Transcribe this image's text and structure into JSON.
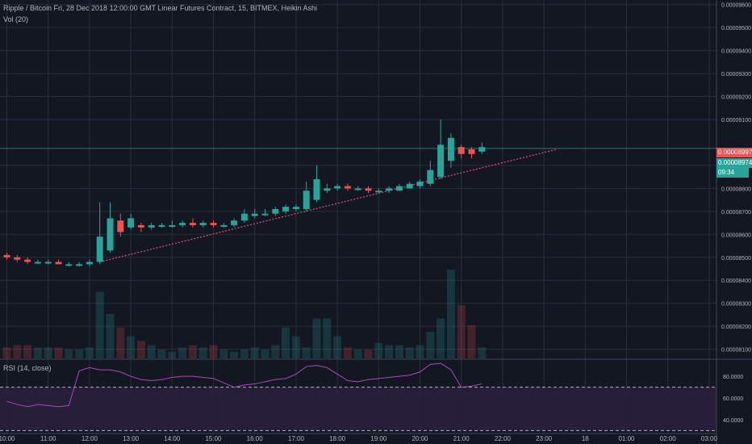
{
  "header": {
    "title": "Ripple / Bitcoin Fri, 28 Dec 2018 12:00:00 GMT Linear Futures Contract, 15, BITMEX, Heikin Ashi",
    "volume_label": "Vol (20)",
    "rsi_label": "RSI (14, close)"
  },
  "price_tags": {
    "current_red": "0.00008997",
    "current_green": "0.00008974",
    "countdown": "09:34"
  },
  "colors": {
    "background": "#131722",
    "grid": "#2a2e39",
    "up": "#26a69a",
    "down": "#ef5350",
    "trendline": "#e0457b",
    "rsi_line": "#ab47bc",
    "rsi_band": "#2a1f3d"
  },
  "chart_data": {
    "type": "candlestick",
    "y_ticks": [
      "0.00009600",
      "0.00009500",
      "0.00009400",
      "0.00009300",
      "0.00009200",
      "0.00009100",
      "0.00008900",
      "0.00008800",
      "0.00008700",
      "0.00008600",
      "0.00008500",
      "0.00008400",
      "0.00008300",
      "0.00008200",
      "0.00008100"
    ],
    "y_tick_values": [
      9.6e-05,
      9.5e-05,
      9.4e-05,
      9.3e-05,
      9.2e-05,
      9.1e-05,
      8.9e-05,
      8.8e-05,
      8.7e-05,
      8.6e-05,
      8.5e-05,
      8.4e-05,
      8.3e-05,
      8.2e-05,
      8.1e-05
    ],
    "x_ticks": [
      "10:00",
      "11:00",
      "12:00",
      "13:00",
      "14:00",
      "15:00",
      "16:00",
      "17:00",
      "18:00",
      "19:00",
      "20:00",
      "21:00",
      "22:00",
      "23:00",
      "18",
      "01:00",
      "02:00",
      "03:00"
    ],
    "ylim": [
      8.06e-05,
      9.62e-05
    ],
    "candles": [
      {
        "t": 0,
        "o": 8.51e-05,
        "c": 8.5e-05,
        "h": 8.52e-05,
        "l": 8.49e-05
      },
      {
        "t": 1,
        "o": 8.5e-05,
        "c": 8.49e-05,
        "h": 8.51e-05,
        "l": 8.48e-05
      },
      {
        "t": 2,
        "o": 8.49e-05,
        "c": 8.48e-05,
        "h": 8.5e-05,
        "l": 8.47e-05
      },
      {
        "t": 3,
        "o": 8.48e-05,
        "c": 8.48e-05,
        "h": 8.49e-05,
        "l": 8.47e-05
      },
      {
        "t": 4,
        "o": 8.48e-05,
        "c": 8.48e-05,
        "h": 8.49e-05,
        "l": 8.47e-05
      },
      {
        "t": 5,
        "o": 8.48e-05,
        "c": 8.47e-05,
        "h": 8.49e-05,
        "l": 8.47e-05
      },
      {
        "t": 6,
        "o": 8.47e-05,
        "c": 8.47e-05,
        "h": 8.48e-05,
        "l": 8.46e-05
      },
      {
        "t": 7,
        "o": 8.47e-05,
        "c": 8.47e-05,
        "h": 8.48e-05,
        "l": 8.46e-05
      },
      {
        "t": 8,
        "o": 8.47e-05,
        "c": 8.48e-05,
        "h": 8.49e-05,
        "l": 8.46e-05
      },
      {
        "t": 9,
        "o": 8.48e-05,
        "c": 8.59e-05,
        "h": 8.74e-05,
        "l": 8.47e-05
      },
      {
        "t": 10,
        "o": 8.53e-05,
        "c": 8.67e-05,
        "h": 8.74e-05,
        "l": 8.52e-05
      },
      {
        "t": 11,
        "o": 8.66e-05,
        "c": 8.61e-05,
        "h": 8.69e-05,
        "l": 8.59e-05
      },
      {
        "t": 12,
        "o": 8.63e-05,
        "c": 8.67e-05,
        "h": 8.69e-05,
        "l": 8.62e-05
      },
      {
        "t": 13,
        "o": 8.64e-05,
        "c": 8.63e-05,
        "h": 8.65e-05,
        "l": 8.61e-05
      },
      {
        "t": 14,
        "o": 8.63e-05,
        "c": 8.64e-05,
        "h": 8.65e-05,
        "l": 8.62e-05
      },
      {
        "t": 15,
        "o": 8.64e-05,
        "c": 8.64e-05,
        "h": 8.65e-05,
        "l": 8.63e-05
      },
      {
        "t": 16,
        "o": 8.64e-05,
        "c": 8.64e-05,
        "h": 8.66e-05,
        "l": 8.63e-05
      },
      {
        "t": 17,
        "o": 8.64e-05,
        "c": 8.65e-05,
        "h": 8.66e-05,
        "l": 8.63e-05
      },
      {
        "t": 18,
        "o": 8.65e-05,
        "c": 8.64e-05,
        "h": 8.67e-05,
        "l": 8.63e-05
      },
      {
        "t": 19,
        "o": 8.64e-05,
        "c": 8.65e-05,
        "h": 8.66e-05,
        "l": 8.63e-05
      },
      {
        "t": 20,
        "o": 8.65e-05,
        "c": 8.64e-05,
        "h": 8.66e-05,
        "l": 8.63e-05
      },
      {
        "t": 21,
        "o": 8.64e-05,
        "c": 8.64e-05,
        "h": 8.65e-05,
        "l": 8.63e-05
      },
      {
        "t": 22,
        "o": 8.64e-05,
        "c": 8.66e-05,
        "h": 8.67e-05,
        "l": 8.63e-05
      },
      {
        "t": 23,
        "o": 8.66e-05,
        "c": 8.69e-05,
        "h": 8.71e-05,
        "l": 8.65e-05
      },
      {
        "t": 24,
        "o": 8.68e-05,
        "c": 8.69e-05,
        "h": 8.71e-05,
        "l": 8.67e-05
      },
      {
        "t": 25,
        "o": 8.69e-05,
        "c": 8.69e-05,
        "h": 8.71e-05,
        "l": 8.68e-05
      },
      {
        "t": 26,
        "o": 8.69e-05,
        "c": 8.71e-05,
        "h": 8.72e-05,
        "l": 8.68e-05
      },
      {
        "t": 27,
        "o": 8.7e-05,
        "c": 8.72e-05,
        "h": 8.73e-05,
        "l": 8.69e-05
      },
      {
        "t": 28,
        "o": 8.71e-05,
        "c": 8.72e-05,
        "h": 8.73e-05,
        "l": 8.7e-05
      },
      {
        "t": 29,
        "o": 8.71e-05,
        "c": 8.79e-05,
        "h": 8.83e-05,
        "l": 8.7e-05
      },
      {
        "t": 30,
        "o": 8.75e-05,
        "c": 8.84e-05,
        "h": 8.9e-05,
        "l": 8.74e-05
      },
      {
        "t": 31,
        "o": 8.79e-05,
        "c": 8.8e-05,
        "h": 8.82e-05,
        "l": 8.78e-05
      },
      {
        "t": 32,
        "o": 8.8e-05,
        "c": 8.81e-05,
        "h": 8.82e-05,
        "l": 8.79e-05
      },
      {
        "t": 33,
        "o": 8.81e-05,
        "c": 8.8e-05,
        "h": 8.82e-05,
        "l": 8.79e-05
      },
      {
        "t": 34,
        "o": 8.8e-05,
        "c": 8.8e-05,
        "h": 8.81e-05,
        "l": 8.79e-05
      },
      {
        "t": 35,
        "o": 8.8e-05,
        "c": 8.79e-05,
        "h": 8.81e-05,
        "l": 8.78e-05
      },
      {
        "t": 36,
        "o": 8.79e-05,
        "c": 8.79e-05,
        "h": 8.8e-05,
        "l": 8.78e-05
      },
      {
        "t": 37,
        "o": 8.79e-05,
        "c": 8.8e-05,
        "h": 8.81e-05,
        "l": 8.78e-05
      },
      {
        "t": 38,
        "o": 8.79e-05,
        "c": 8.81e-05,
        "h": 8.82e-05,
        "l": 8.79e-05
      },
      {
        "t": 39,
        "o": 8.8e-05,
        "c": 8.82e-05,
        "h": 8.83e-05,
        "l": 8.8e-05
      },
      {
        "t": 40,
        "o": 8.81e-05,
        "c": 8.83e-05,
        "h": 8.84e-05,
        "l": 8.8e-05
      },
      {
        "t": 41,
        "o": 8.82e-05,
        "c": 8.88e-05,
        "h": 8.92e-05,
        "l": 8.81e-05
      },
      {
        "t": 42,
        "o": 8.85e-05,
        "c": 8.99e-05,
        "h": 9.1e-05,
        "l": 8.84e-05
      },
      {
        "t": 43,
        "o": 8.92e-05,
        "c": 9.02e-05,
        "h": 9.04e-05,
        "l": 8.89e-05
      },
      {
        "t": 44,
        "o": 8.98e-05,
        "c": 8.95e-05,
        "h": 8.99e-05,
        "l": 8.93e-05
      },
      {
        "t": 45,
        "o": 8.97e-05,
        "c": 8.95e-05,
        "h": 8.98e-05,
        "l": 8.93e-05
      },
      {
        "t": 46,
        "o": 8.96e-05,
        "c": 8.98e-05,
        "h": 9e-05,
        "l": 8.95e-05
      }
    ],
    "volume": [
      1,
      1,
      1,
      1,
      1,
      1,
      1,
      1,
      1,
      1,
      1,
      1,
      1,
      1,
      1,
      1,
      1,
      1,
      1,
      1,
      1,
      1,
      1,
      1,
      1,
      1,
      1,
      1,
      1,
      1,
      1,
      1,
      1,
      1,
      1,
      1,
      1,
      1,
      1,
      1,
      1,
      1,
      1,
      1,
      1,
      1,
      1
    ],
    "volume_raw": [
      5,
      6,
      6,
      5,
      5,
      5,
      4,
      4,
      5,
      30,
      20,
      14,
      10,
      8,
      6,
      4,
      3,
      5,
      6,
      5,
      6,
      4,
      3,
      4,
      5,
      4,
      6,
      14,
      10,
      5,
      18,
      18,
      10,
      5,
      4,
      4,
      7,
      6,
      6,
      5,
      6,
      12,
      18,
      40,
      24,
      15,
      5
    ],
    "rsi": [
      57,
      54,
      52,
      54,
      53,
      52,
      53,
      85,
      88,
      86,
      86,
      84,
      80,
      77,
      76,
      77,
      79,
      80,
      80,
      79,
      78,
      74,
      70,
      72,
      73,
      75,
      77,
      78,
      82,
      89,
      90,
      88,
      82,
      76,
      75,
      77,
      78,
      79,
      80,
      81,
      84,
      91,
      92,
      86,
      70,
      71,
      73
    ],
    "rsi_ticks": [
      "80.0000",
      "60.0000",
      "40.0000"
    ],
    "rsi_tick_values": [
      80,
      60,
      40
    ],
    "rsi_ylim": [
      28,
      95
    ]
  }
}
